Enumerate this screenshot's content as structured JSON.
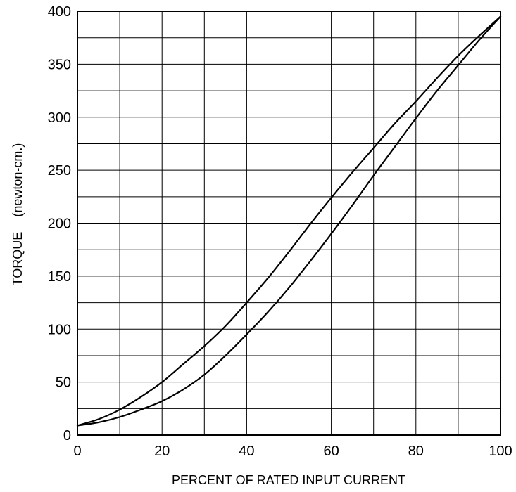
{
  "chart_data": {
    "type": "line",
    "title": "",
    "xlabel": "PERCENT OF RATED INPUT CURRENT",
    "ylabel": "TORQUE",
    "ylabel_unit": "(newton-cm.)",
    "xlim": [
      0,
      100
    ],
    "ylim": [
      0,
      400
    ],
    "grid": true,
    "x_ticks": [
      0,
      20,
      40,
      60,
      80,
      100
    ],
    "y_ticks": [
      0,
      50,
      100,
      150,
      200,
      250,
      300,
      350,
      400
    ],
    "x_tick_labels": [
      "0",
      "20",
      "40",
      "60",
      "80",
      "100"
    ],
    "y_tick_labels": [
      "0",
      "50",
      "100",
      "150",
      "200",
      "250",
      "300",
      "350",
      "400"
    ],
    "series": [
      {
        "x": [
          0,
          5,
          10,
          15,
          20,
          25,
          30,
          35,
          40,
          45,
          50,
          55,
          60,
          65,
          70,
          75,
          80,
          85,
          90,
          95,
          100
        ],
        "values": [
          9,
          15,
          24,
          36,
          50,
          67,
          84,
          103,
          125,
          148,
          173,
          199,
          224,
          248,
          271,
          294,
          315,
          337,
          358,
          377,
          395
        ]
      },
      {
        "x": [
          0,
          5,
          10,
          15,
          20,
          25,
          30,
          35,
          40,
          45,
          50,
          55,
          60,
          65,
          70,
          75,
          80,
          85,
          90,
          95,
          100
        ],
        "values": [
          9,
          12,
          17,
          24,
          32,
          43,
          57,
          75,
          95,
          116,
          139,
          164,
          190,
          217,
          245,
          272,
          299,
          325,
          349,
          373,
          395
        ]
      }
    ]
  }
}
